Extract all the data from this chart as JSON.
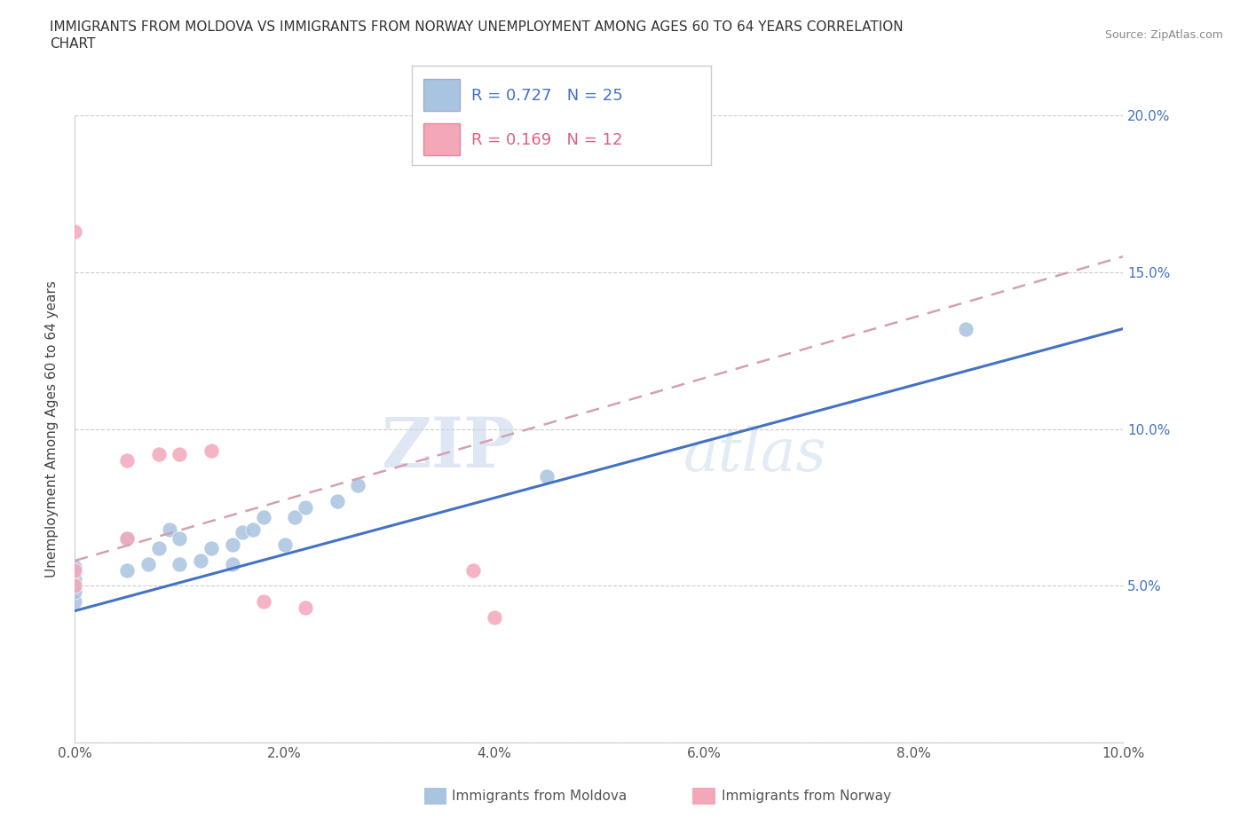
{
  "title_line1": "IMMIGRANTS FROM MOLDOVA VS IMMIGRANTS FROM NORWAY UNEMPLOYMENT AMONG AGES 60 TO 64 YEARS CORRELATION",
  "title_line2": "CHART",
  "source": "Source: ZipAtlas.com",
  "ylabel": "Unemployment Among Ages 60 to 64 years",
  "xlim": [
    0.0,
    0.1
  ],
  "ylim": [
    0.0,
    0.2
  ],
  "xticks": [
    0.0,
    0.02,
    0.04,
    0.06,
    0.08,
    0.1
  ],
  "yticks": [
    0.0,
    0.05,
    0.1,
    0.15,
    0.2
  ],
  "xticklabels": [
    "0.0%",
    "2.0%",
    "4.0%",
    "6.0%",
    "8.0%",
    "10.0%"
  ],
  "yticklabels": [
    "",
    "5.0%",
    "10.0%",
    "15.0%",
    "20.0%"
  ],
  "moldova_color": "#a8c4e0",
  "norway_color": "#f4a7b9",
  "moldova_line_color": "#4472c4",
  "norway_line_color": "#e06080",
  "norway_dash_color": "#d4a0b0",
  "watermark_zip": "ZIP",
  "watermark_atlas": "atlas",
  "legend_r_moldova": "R = 0.727",
  "legend_n_moldova": "N = 25",
  "legend_r_norway": "R = 0.169",
  "legend_n_norway": "N = 12",
  "moldova_x": [
    0.0,
    0.0,
    0.0,
    0.0,
    0.005,
    0.005,
    0.007,
    0.008,
    0.009,
    0.01,
    0.01,
    0.012,
    0.013,
    0.015,
    0.015,
    0.016,
    0.017,
    0.018,
    0.02,
    0.021,
    0.022,
    0.025,
    0.027,
    0.045,
    0.085
  ],
  "moldova_y": [
    0.045,
    0.048,
    0.052,
    0.056,
    0.055,
    0.065,
    0.057,
    0.062,
    0.068,
    0.057,
    0.065,
    0.058,
    0.062,
    0.057,
    0.063,
    0.067,
    0.068,
    0.072,
    0.063,
    0.072,
    0.075,
    0.077,
    0.082,
    0.085,
    0.132
  ],
  "norway_x": [
    0.0,
    0.0,
    0.0,
    0.005,
    0.005,
    0.008,
    0.01,
    0.013,
    0.018,
    0.022,
    0.038,
    0.04
  ],
  "norway_y": [
    0.05,
    0.055,
    0.163,
    0.065,
    0.09,
    0.092,
    0.092,
    0.093,
    0.045,
    0.043,
    0.055,
    0.04
  ],
  "moldova_trend_x": [
    0.0,
    0.1
  ],
  "moldova_trend_y": [
    0.042,
    0.132
  ],
  "norway_trend_x": [
    0.0,
    0.1
  ],
  "norway_trend_y": [
    0.058,
    0.155
  ],
  "bottom_legend_moldova": "Immigrants from Moldova",
  "bottom_legend_norway": "Immigrants from Norway"
}
